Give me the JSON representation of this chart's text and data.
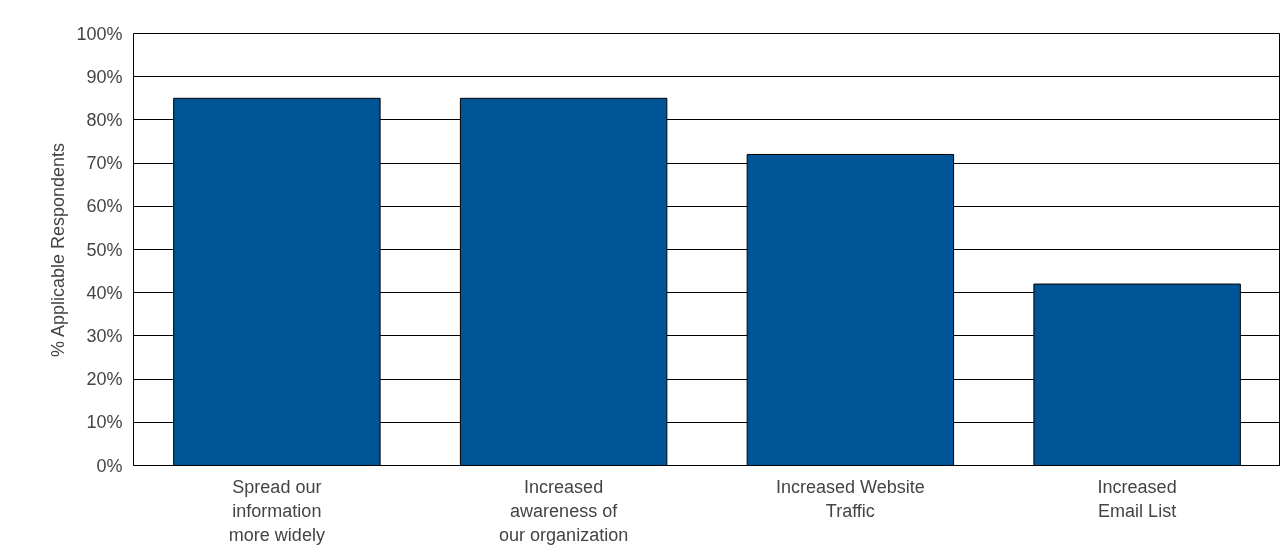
{
  "chart_data": {
    "type": "bar",
    "ylabel": "% Applicable Respondents",
    "categories": [
      "Spread our\ninformation\nmore widely",
      "Increased\nawareness of\nour organization",
      "Increased Website\nTraffic",
      "Increased\nEmail List"
    ],
    "values": [
      85,
      85,
      72,
      42
    ],
    "color": "#005596",
    "ylim": [
      0,
      100
    ],
    "yticks": [
      {
        "value": 0,
        "label": "0%"
      },
      {
        "value": 10,
        "label": "10%"
      },
      {
        "value": 20,
        "label": "20%"
      },
      {
        "value": 30,
        "label": "30%"
      },
      {
        "value": 40,
        "label": "40%"
      },
      {
        "value": 50,
        "label": "50%"
      },
      {
        "value": 60,
        "label": "60%"
      },
      {
        "value": 70,
        "label": "70%"
      },
      {
        "value": 80,
        "label": "80%"
      },
      {
        "value": 90,
        "label": "90%"
      },
      {
        "value": 100,
        "label": "100%"
      }
    ],
    "grid": "y"
  }
}
